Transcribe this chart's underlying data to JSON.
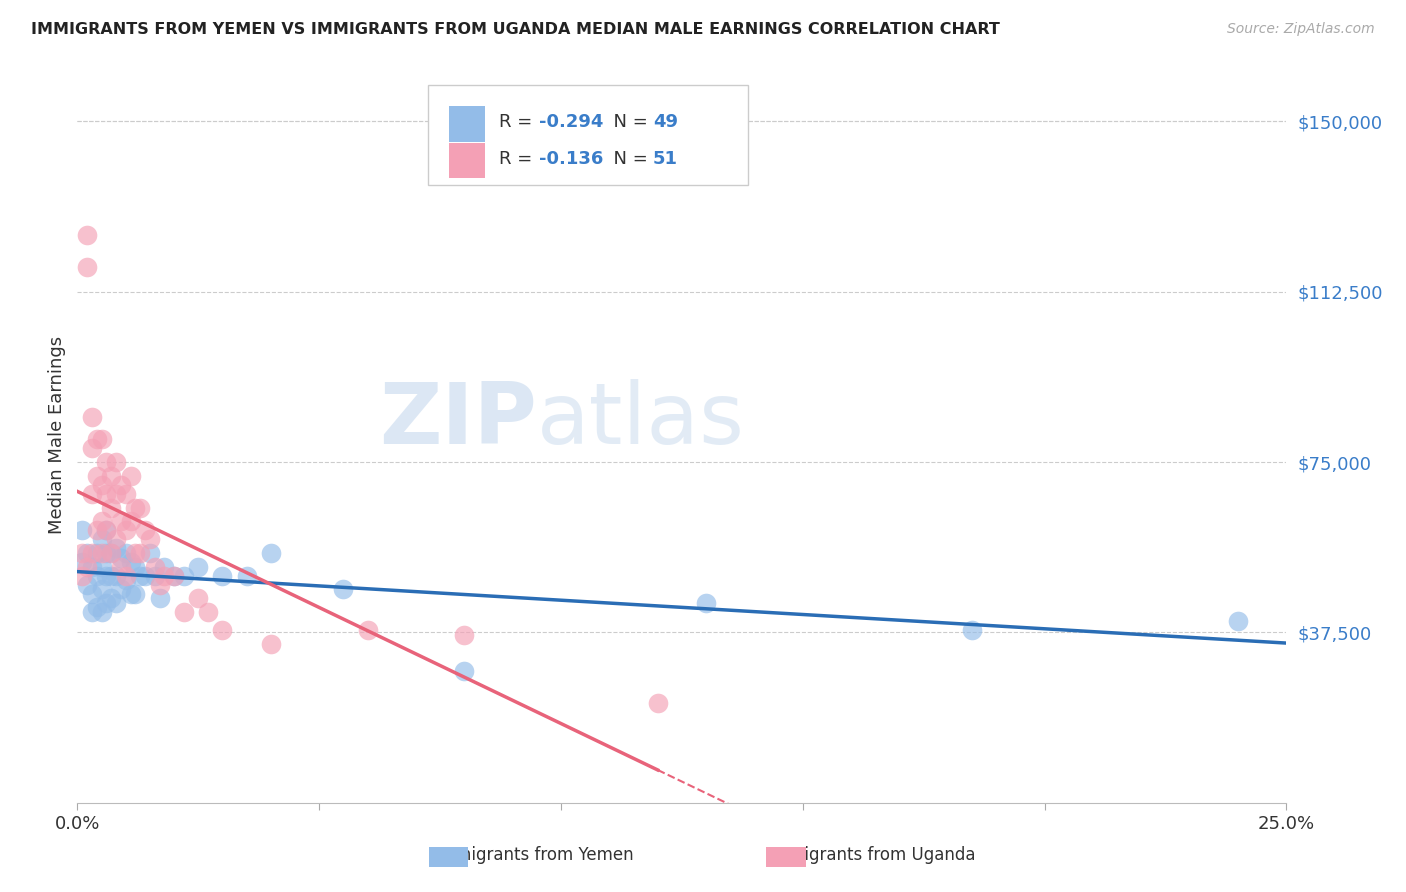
{
  "title": "IMMIGRANTS FROM YEMEN VS IMMIGRANTS FROM UGANDA MEDIAN MALE EARNINGS CORRELATION CHART",
  "source": "Source: ZipAtlas.com",
  "ylabel": "Median Male Earnings",
  "ytick_labels": [
    "$37,500",
    "$75,000",
    "$112,500",
    "$150,000"
  ],
  "ytick_values": [
    37500,
    75000,
    112500,
    150000
  ],
  "ylim": [
    0,
    162000
  ],
  "xlim": [
    0.0,
    0.25
  ],
  "color_yemen": "#93bce8",
  "color_uganda": "#f4a0b5",
  "line_color_yemen": "#2a6db5",
  "line_color_uganda": "#e8637a",
  "watermark_zip": "ZIP",
  "watermark_atlas": "atlas",
  "yemen_x": [
    0.001,
    0.001,
    0.002,
    0.002,
    0.003,
    0.003,
    0.003,
    0.004,
    0.004,
    0.004,
    0.005,
    0.005,
    0.005,
    0.005,
    0.006,
    0.006,
    0.006,
    0.006,
    0.007,
    0.007,
    0.007,
    0.008,
    0.008,
    0.008,
    0.009,
    0.009,
    0.01,
    0.01,
    0.011,
    0.011,
    0.012,
    0.012,
    0.013,
    0.014,
    0.015,
    0.016,
    0.017,
    0.018,
    0.02,
    0.022,
    0.025,
    0.03,
    0.035,
    0.04,
    0.055,
    0.08,
    0.13,
    0.185,
    0.24
  ],
  "yemen_y": [
    60000,
    53000,
    55000,
    48000,
    52000,
    46000,
    42000,
    55000,
    50000,
    43000,
    58000,
    52000,
    47000,
    42000,
    60000,
    55000,
    50000,
    44000,
    55000,
    50000,
    45000,
    56000,
    50000,
    44000,
    54000,
    47000,
    55000,
    49000,
    53000,
    46000,
    52000,
    46000,
    50000,
    50000,
    55000,
    50000,
    45000,
    52000,
    50000,
    50000,
    52000,
    50000,
    50000,
    55000,
    47000,
    29000,
    44000,
    38000,
    40000
  ],
  "uganda_x": [
    0.001,
    0.001,
    0.002,
    0.002,
    0.002,
    0.003,
    0.003,
    0.003,
    0.003,
    0.004,
    0.004,
    0.004,
    0.005,
    0.005,
    0.005,
    0.005,
    0.006,
    0.006,
    0.006,
    0.007,
    0.007,
    0.007,
    0.008,
    0.008,
    0.008,
    0.009,
    0.009,
    0.009,
    0.01,
    0.01,
    0.01,
    0.011,
    0.011,
    0.012,
    0.012,
    0.013,
    0.013,
    0.014,
    0.015,
    0.016,
    0.017,
    0.018,
    0.02,
    0.022,
    0.025,
    0.027,
    0.03,
    0.04,
    0.06,
    0.08,
    0.12
  ],
  "uganda_y": [
    55000,
    50000,
    125000,
    118000,
    52000,
    85000,
    78000,
    68000,
    55000,
    80000,
    72000,
    60000,
    80000,
    70000,
    62000,
    55000,
    75000,
    68000,
    60000,
    72000,
    65000,
    55000,
    75000,
    68000,
    58000,
    70000,
    62000,
    52000,
    68000,
    60000,
    50000,
    72000,
    62000,
    65000,
    55000,
    65000,
    55000,
    60000,
    58000,
    52000,
    48000,
    50000,
    50000,
    42000,
    45000,
    42000,
    38000,
    35000,
    38000,
    37000,
    22000
  ],
  "legend_R_yemen": "-0.294",
  "legend_N_yemen": "49",
  "legend_R_uganda": "-0.136",
  "legend_N_uganda": "51"
}
